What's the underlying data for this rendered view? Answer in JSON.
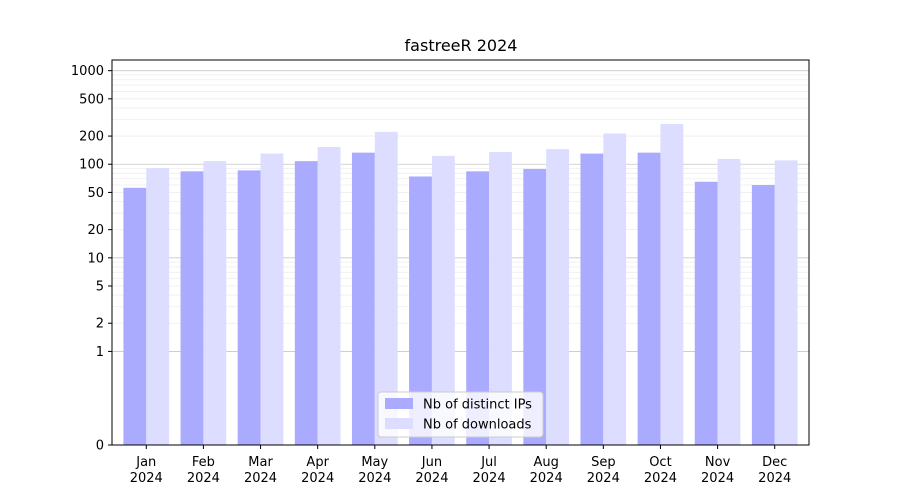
{
  "chart_data": {
    "type": "bar",
    "title": "fastreeR 2024",
    "xlabel": "",
    "ylabel": "",
    "yscale": "symlog",
    "ylim": [
      0,
      1300
    ],
    "yticks": [
      0,
      1,
      2,
      5,
      10,
      20,
      50,
      100,
      200,
      500,
      1000
    ],
    "grid": true,
    "legend": "bottom-center",
    "categories": [
      "Jan\n2024",
      "Feb\n2024",
      "Mar\n2024",
      "Apr\n2024",
      "May\n2024",
      "Jun\n2024",
      "Jul\n2024",
      "Aug\n2024",
      "Sep\n2024",
      "Oct\n2024",
      "Nov\n2024",
      "Dec\n2024"
    ],
    "series": [
      {
        "name": "Nb of distinct IPs",
        "color": "#aaaaff",
        "values": [
          56,
          84,
          86,
          108,
          133,
          74,
          84,
          89,
          130,
          133,
          65,
          60
        ]
      },
      {
        "name": "Nb of downloads",
        "color": "#ddddff",
        "values": [
          91,
          108,
          130,
          153,
          222,
          123,
          135,
          145,
          213,
          269,
          114,
          110
        ]
      }
    ]
  }
}
